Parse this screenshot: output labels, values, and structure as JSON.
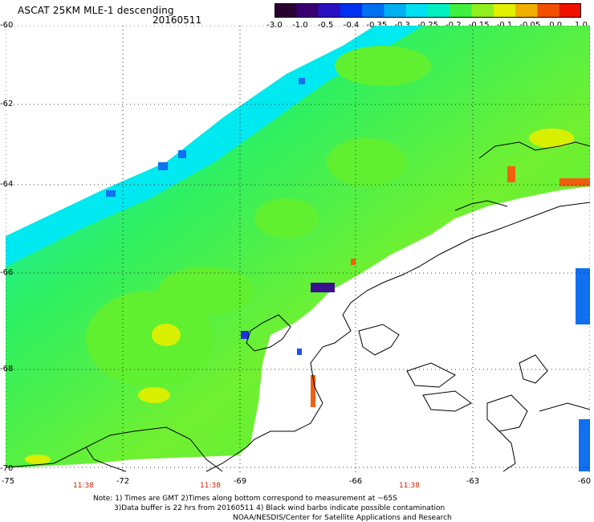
{
  "title": "ASCAT 25KM MLE-1 descending",
  "date": "20160511",
  "colorbar": {
    "labels": [
      "-3.0",
      "-1.0",
      "-0.5",
      "-0.4",
      "-0.35",
      "-0.3",
      "-0.25",
      "-0.2",
      "-0.15",
      "-0.1",
      "-0.05",
      "0.0",
      "1.0"
    ],
    "colors": [
      "#2a0030",
      "#3a0070",
      "#2a10c0",
      "#0030f0",
      "#0070f0",
      "#00b0f0",
      "#00e0f0",
      "#00f0c0",
      "#40f040",
      "#90f020",
      "#e0f000",
      "#f0b000",
      "#f05000",
      "#f01000"
    ]
  },
  "map": {
    "lat_labels": [
      "-60",
      "-62",
      "-64",
      "-66",
      "-68",
      "-70"
    ],
    "lon_labels": [
      "-75",
      "-72",
      "-69",
      "-66",
      "-63",
      "-60"
    ],
    "time_labels": [
      "11:38",
      "11:38",
      "11:38"
    ]
  },
  "notes": {
    "line1": "Note: 1) Times are GMT 2)Times along bottom correspond to measurement at ~65S",
    "line2": "3)Data buffer is 22 hrs from 20160511 4) Black wind barbs indicate possible contamination",
    "line3": "NOAA/NESDIS/Center for Satellite Applications and Research"
  }
}
